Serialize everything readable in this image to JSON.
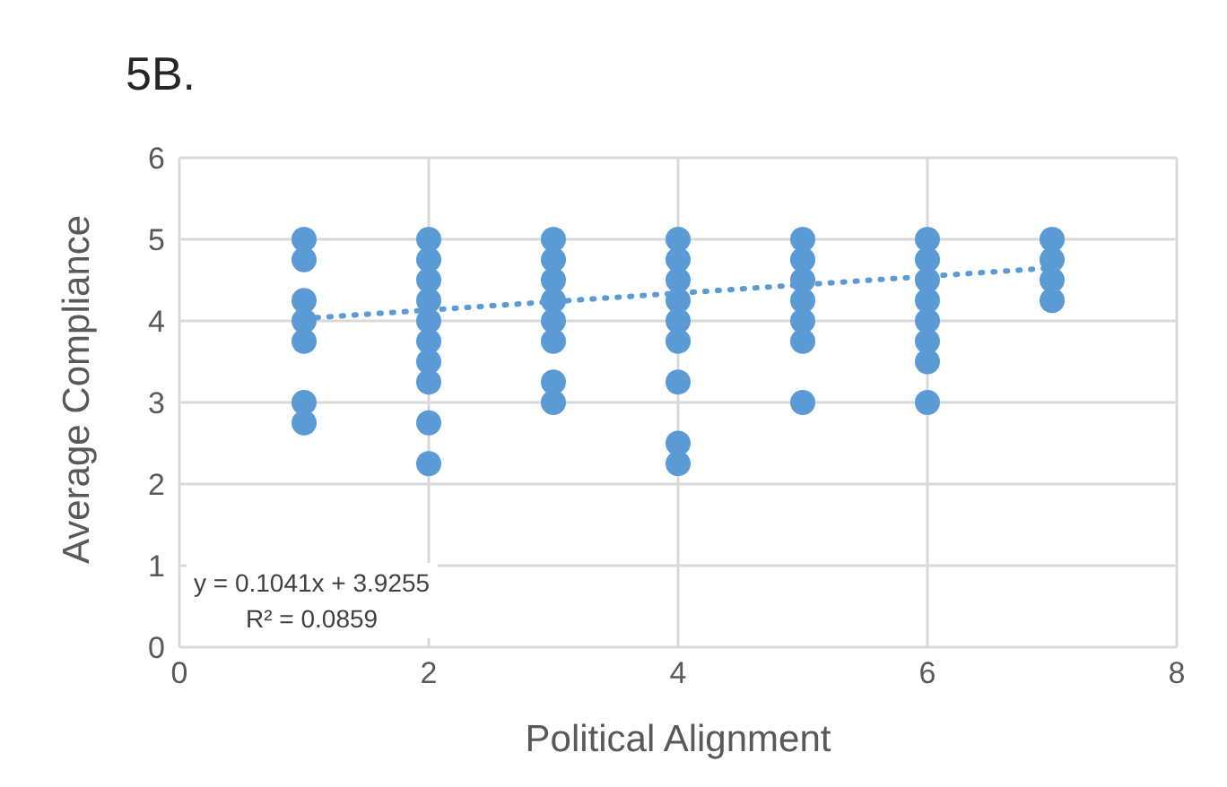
{
  "chart_data": {
    "type": "scatter",
    "title": "5B.",
    "xlabel": "Political Alignment",
    "ylabel": "Average Compliance",
    "xlim": [
      0,
      8
    ],
    "xticks": [
      0,
      2,
      4,
      6,
      8
    ],
    "ylim": [
      0,
      6
    ],
    "yticks": [
      0,
      1,
      2,
      3,
      4,
      5,
      6
    ],
    "grid": true,
    "legend": false,
    "annotations": [
      "y = 0.1041x + 3.9255",
      "R² = 0.0859"
    ],
    "series": [
      {
        "type": "scatter",
        "color": "#5b9bd5",
        "marker": "circle",
        "x": [
          1,
          1,
          1,
          1,
          1,
          1,
          1,
          2,
          2,
          2,
          2,
          2,
          2,
          2,
          2,
          2,
          2,
          3,
          3,
          3,
          3,
          3,
          3,
          3,
          3,
          4,
          4,
          4,
          4,
          4,
          4,
          4,
          4,
          4,
          5,
          5,
          5,
          5,
          5,
          5,
          5,
          6,
          6,
          6,
          6,
          6,
          6,
          6,
          6,
          7,
          7,
          7,
          7
        ],
        "values": [
          5,
          4.75,
          4.25,
          4,
          3.75,
          3,
          2.75,
          5,
          4.75,
          4.5,
          4.25,
          4,
          3.75,
          3.5,
          3.25,
          2.75,
          2.25,
          5,
          4.75,
          4.5,
          4.25,
          4,
          3.75,
          3.25,
          3,
          5,
          4.75,
          4.5,
          4.25,
          4,
          3.75,
          3.25,
          2.5,
          2.25,
          5,
          4.75,
          4.5,
          4.25,
          4,
          3.75,
          3,
          5,
          4.75,
          4.5,
          4.25,
          4,
          3.75,
          3.5,
          3,
          5,
          4.75,
          4.5,
          4.25
        ]
      },
      {
        "type": "line",
        "color": "#5b9bd5",
        "marker": "none",
        "line_style": "dotted",
        "x": [
          1,
          7
        ],
        "values": [
          4.03,
          4.65
        ]
      }
    ]
  }
}
